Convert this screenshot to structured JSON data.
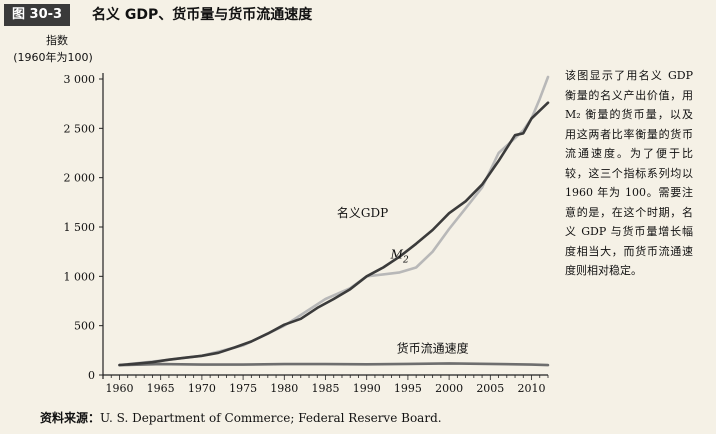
{
  "figure": {
    "label": "图 30-3",
    "title": "名义 GDP、货币量与货币流通速度",
    "note": "该图显示了用名义 GDP 衡量的名义产出价值，用 M₂ 衡量的货币量，以及用这两者比率衡量的货币流通速度。为了便于比较，这三个指标系列均以 1960 年为 100。需要注意的是，在这个时期，名义 GDP 与货币量增长幅度相当大，而货币流通速度则相对稳定。",
    "source_label": "资料来源：",
    "source_text": "U. S. Department of Commerce; Federal Reserve Board."
  },
  "colors": {
    "background": "#f5f1e6",
    "gdp": "#3b3b3b",
    "m2": "#b8b8b8",
    "velocity": "#6e6e6e",
    "axis": "#222222"
  },
  "chart_data": {
    "type": "line",
    "ylabel_line1": "指数",
    "ylabel_line2": "(1960年为100)",
    "xlim": [
      1958,
      2012
    ],
    "ylim": [
      0,
      3000
    ],
    "x_ticks": [
      1960,
      1965,
      1970,
      1975,
      1980,
      1985,
      1990,
      1995,
      2000,
      2005,
      2010
    ],
    "y_ticks": [
      0,
      500,
      1000,
      1500,
      2000,
      2500,
      3000
    ],
    "y_tick_labels": [
      "0",
      "500",
      "1 000",
      "1 500",
      "2 000",
      "2 500",
      "3 000"
    ],
    "series": [
      {
        "name": "名义GDP",
        "key": "gdp",
        "x": [
          1960,
          1962,
          1964,
          1966,
          1968,
          1970,
          1972,
          1974,
          1976,
          1978,
          1980,
          1982,
          1984,
          1986,
          1988,
          1990,
          1992,
          1994,
          1996,
          1998,
          2000,
          2002,
          2004,
          2006,
          2007,
          2008,
          2009,
          2010,
          2011,
          2012
        ],
        "values": [
          100,
          115,
          130,
          155,
          175,
          195,
          225,
          280,
          340,
          420,
          510,
          570,
          680,
          770,
          870,
          1000,
          1090,
          1200,
          1330,
          1470,
          1640,
          1760,
          1930,
          2170,
          2300,
          2430,
          2450,
          2600,
          2680,
          2760
        ]
      },
      {
        "name": "M2",
        "key": "m2",
        "x": [
          1960,
          1965,
          1970,
          1975,
          1980,
          1985,
          1988,
          1990,
          1992,
          1994,
          1996,
          1998,
          2000,
          2002,
          2004,
          2006,
          2008,
          2009,
          2010,
          2011,
          2012
        ],
        "values": [
          100,
          145,
          195,
          300,
          500,
          770,
          880,
          1000,
          1020,
          1040,
          1090,
          1250,
          1480,
          1690,
          1900,
          2250,
          2400,
          2480,
          2600,
          2800,
          3020
        ]
      },
      {
        "name": "货币流通速度",
        "key": "velocity",
        "x": [
          1960,
          1965,
          1970,
          1975,
          1980,
          1985,
          1990,
          1995,
          2000,
          2005,
          2010,
          2012
        ],
        "values": [
          100,
          110,
          105,
          105,
          110,
          110,
          108,
          112,
          118,
          112,
          105,
          100
        ]
      }
    ],
    "annotations": [
      {
        "key": "gdp",
        "text": "名义GDP",
        "x": 1989.5,
        "y": 1600
      },
      {
        "key": "m2",
        "text": "M",
        "sub": "2",
        "x": 1994,
        "y": 1180
      },
      {
        "key": "velocity",
        "text": "货币流通速度",
        "x": 1998,
        "y": 230
      }
    ]
  }
}
